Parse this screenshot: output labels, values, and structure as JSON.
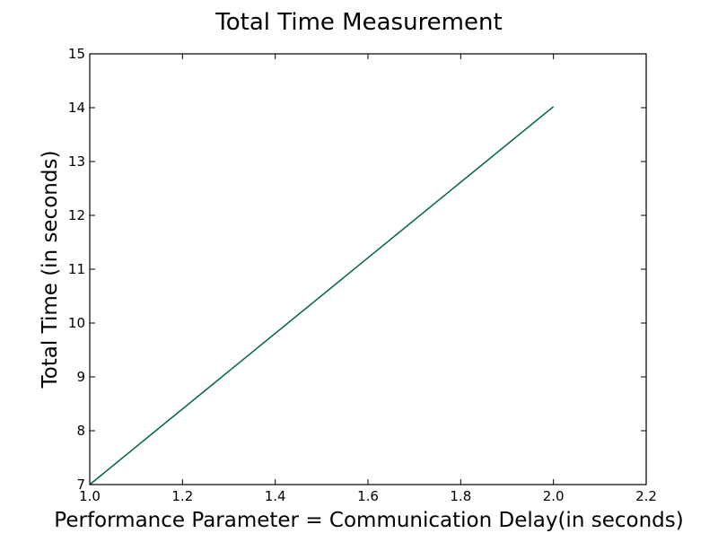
{
  "chart_data": {
    "type": "line",
    "title": "Total Time Measurement",
    "xlabel": "Performance Parameter = Communication Delay(in seconds)",
    "ylabel": "Total Time (in seconds)",
    "xlim": [
      1.0,
      2.2
    ],
    "ylim": [
      7,
      15
    ],
    "x_ticks": [
      "1.0",
      "1.2",
      "1.4",
      "1.6",
      "1.8",
      "2.0",
      "2.2"
    ],
    "y_ticks": [
      "7",
      "8",
      "9",
      "10",
      "11",
      "12",
      "13",
      "14",
      "15"
    ],
    "grid": false,
    "legend": "none",
    "series": [
      {
        "color": "#006837",
        "x": [
          1.0,
          2.0
        ],
        "y": [
          7.0,
          14.02
        ]
      }
    ]
  }
}
